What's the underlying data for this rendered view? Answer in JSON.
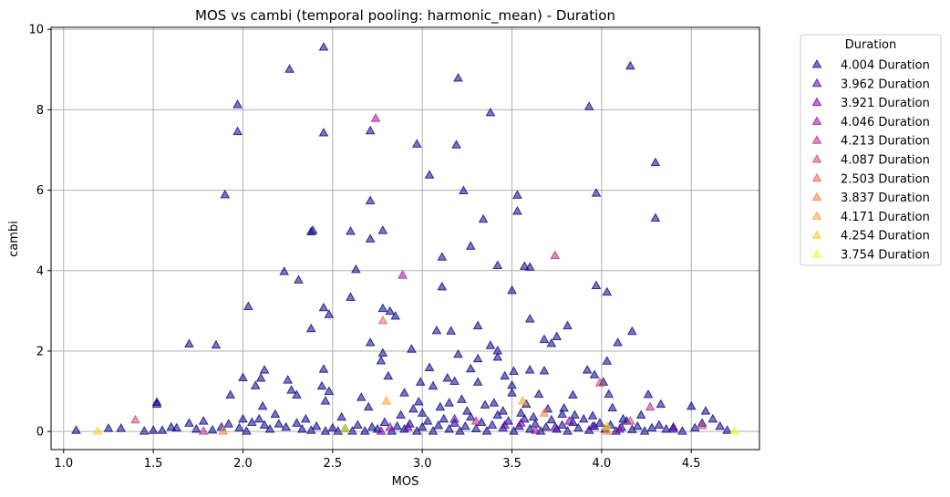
{
  "chart_data": {
    "type": "scatter",
    "title": "MOS vs cambi (temporal pooling: harmonic_mean) - Duration",
    "xlabel": "MOS",
    "ylabel": "cambi",
    "xlim": [
      0.93,
      4.88
    ],
    "ylim": [
      -0.45,
      10.05
    ],
    "xticks": [
      "1.0",
      "1.5",
      "2.0",
      "2.5",
      "3.0",
      "3.5",
      "4.0",
      "4.5"
    ],
    "yticks": [
      "0",
      "2",
      "4",
      "6",
      "8",
      "10"
    ],
    "grid": true,
    "marker": "triangle-up",
    "legend": {
      "title": "Duration",
      "position": "outside-top-right",
      "entries": [
        {
          "label": "4.004 Duration",
          "color": "#0d0887"
        },
        {
          "label": "3.962 Duration",
          "color": "#5c01a6"
        },
        {
          "label": "3.921 Duration",
          "color": "#7e03a8"
        },
        {
          "label": "4.046 Duration",
          "color": "#9c179e"
        },
        {
          "label": "4.213 Duration",
          "color": "#b52f8c"
        },
        {
          "label": "4.087 Duration",
          "color": "#cc4778"
        },
        {
          "label": "2.503 Duration",
          "color": "#e16462"
        },
        {
          "label": "3.837 Duration",
          "color": "#f2844b"
        },
        {
          "label": "4.171 Duration",
          "color": "#fca636"
        },
        {
          "label": "4.254 Duration",
          "color": "#fcce25"
        },
        {
          "label": "3.754 Duration",
          "color": "#f0f921"
        }
      ]
    },
    "series": [
      {
        "name": "4.004 Duration",
        "points": [
          [
            2.45,
            9.55
          ],
          [
            2.26,
            9.0
          ],
          [
            4.16,
            9.08
          ],
          [
            3.2,
            8.78
          ],
          [
            1.97,
            8.12
          ],
          [
            3.93,
            8.07
          ],
          [
            1.97,
            7.45
          ],
          [
            2.45,
            7.42
          ],
          [
            2.71,
            7.47
          ],
          [
            3.38,
            7.92
          ],
          [
            2.97,
            7.14
          ],
          [
            3.19,
            7.12
          ],
          [
            4.3,
            6.68
          ],
          [
            3.04,
            6.37
          ],
          [
            3.23,
            5.98
          ],
          [
            1.9,
            5.88
          ],
          [
            2.71,
            5.73
          ],
          [
            3.53,
            5.87
          ],
          [
            3.97,
            5.92
          ],
          [
            3.53,
            5.47
          ],
          [
            4.3,
            5.3
          ],
          [
            3.34,
            5.27
          ],
          [
            2.38,
            4.96
          ],
          [
            2.39,
            4.99
          ],
          [
            2.6,
            4.97
          ],
          [
            2.78,
            4.99
          ],
          [
            2.71,
            4.78
          ],
          [
            3.27,
            4.6
          ],
          [
            3.11,
            4.33
          ],
          [
            2.63,
            4.02
          ],
          [
            2.23,
            3.97
          ],
          [
            2.31,
            3.76
          ],
          [
            3.42,
            4.12
          ],
          [
            3.57,
            4.1
          ],
          [
            3.6,
            4.08
          ],
          [
            3.11,
            3.59
          ],
          [
            3.97,
            3.62
          ],
          [
            4.03,
            3.46
          ],
          [
            3.5,
            3.5
          ],
          [
            2.6,
            3.33
          ],
          [
            2.03,
            3.1
          ],
          [
            2.45,
            3.07
          ],
          [
            2.78,
            3.05
          ],
          [
            2.82,
            2.98
          ],
          [
            2.48,
            2.9
          ],
          [
            2.85,
            2.86
          ],
          [
            2.38,
            2.55
          ],
          [
            3.08,
            2.5
          ],
          [
            3.16,
            2.49
          ],
          [
            3.31,
            2.62
          ],
          [
            3.6,
            2.79
          ],
          [
            3.68,
            2.28
          ],
          [
            3.72,
            2.18
          ],
          [
            3.75,
            2.35
          ],
          [
            3.81,
            2.62
          ],
          [
            1.7,
            2.17
          ],
          [
            1.85,
            2.14
          ],
          [
            2.71,
            2.2
          ],
          [
            2.94,
            2.04
          ],
          [
            3.2,
            1.91
          ],
          [
            3.38,
            2.13
          ],
          [
            3.42,
            2.0
          ],
          [
            3.31,
            1.8
          ],
          [
            4.17,
            2.48
          ],
          [
            4.09,
            2.2
          ],
          [
            2.0,
            1.33
          ],
          [
            2.78,
            1.94
          ],
          [
            2.77,
            1.75
          ],
          [
            3.42,
            1.84
          ],
          [
            3.51,
            1.49
          ],
          [
            3.6,
            1.52
          ],
          [
            3.68,
            1.5
          ],
          [
            3.92,
            1.52
          ],
          [
            4.03,
            1.74
          ],
          [
            2.12,
            1.52
          ],
          [
            2.45,
            1.54
          ],
          [
            2.81,
            1.37
          ],
          [
            3.04,
            1.58
          ],
          [
            3.27,
            1.55
          ],
          [
            3.46,
            1.37
          ],
          [
            3.96,
            1.4
          ],
          [
            4.01,
            1.22
          ],
          [
            2.25,
            1.27
          ],
          [
            2.1,
            1.32
          ],
          [
            2.07,
            1.13
          ],
          [
            2.99,
            1.22
          ],
          [
            3.06,
            1.12
          ],
          [
            3.14,
            1.32
          ],
          [
            3.18,
            1.24
          ],
          [
            3.31,
            1.22
          ],
          [
            3.5,
            1.14
          ],
          [
            2.44,
            1.12
          ],
          [
            2.48,
            0.99
          ],
          [
            2.27,
            1.02
          ],
          [
            2.3,
            0.9
          ],
          [
            2.66,
            0.84
          ],
          [
            2.9,
            0.95
          ],
          [
            3.5,
            0.95
          ],
          [
            3.65,
            0.92
          ],
          [
            3.84,
            0.9
          ],
          [
            4.04,
            0.92
          ],
          [
            4.26,
            0.91
          ],
          [
            1.52,
            0.72
          ],
          [
            1.52,
            0.67
          ],
          [
            1.93,
            0.9
          ],
          [
            2.11,
            0.62
          ],
          [
            2.46,
            0.75
          ],
          [
            2.7,
            0.6
          ],
          [
            2.98,
            0.73
          ],
          [
            3.22,
            0.79
          ],
          [
            3.4,
            0.7
          ],
          [
            3.58,
            0.67
          ],
          [
            3.79,
            0.57
          ],
          [
            4.06,
            0.58
          ],
          [
            4.33,
            0.67
          ],
          [
            4.5,
            0.62
          ],
          [
            4.58,
            0.5
          ],
          [
            1.32,
            0.07
          ],
          [
            1.25,
            0.07
          ],
          [
            1.07,
            0.02
          ],
          [
            1.45,
            0.0
          ],
          [
            1.5,
            0.02
          ],
          [
            1.55,
            0.02
          ],
          [
            1.63,
            0.08
          ],
          [
            1.7,
            0.2
          ],
          [
            1.74,
            0.05
          ],
          [
            1.78,
            0.25
          ],
          [
            1.83,
            0.03
          ],
          [
            1.92,
            0.18
          ],
          [
            1.98,
            0.08
          ],
          [
            2.02,
            0.0
          ],
          [
            2.05,
            0.22
          ],
          [
            2.09,
            0.3
          ],
          [
            2.12,
            0.15
          ],
          [
            2.15,
            0.05
          ],
          [
            2.2,
            0.18
          ],
          [
            2.24,
            0.1
          ],
          [
            2.3,
            0.2
          ],
          [
            2.33,
            0.05
          ],
          [
            2.38,
            0.02
          ],
          [
            2.41,
            0.12
          ],
          [
            2.46,
            0.0
          ],
          [
            2.5,
            0.08
          ],
          [
            2.53,
            0.0
          ],
          [
            2.57,
            0.06
          ],
          [
            2.61,
            0.0
          ],
          [
            2.64,
            0.15
          ],
          [
            2.68,
            0.0
          ],
          [
            2.72,
            0.1
          ],
          [
            2.75,
            0.05
          ],
          [
            2.79,
            0.22
          ],
          [
            2.83,
            0.0
          ],
          [
            2.86,
            0.12
          ],
          [
            2.9,
            0.05
          ],
          [
            2.93,
            0.18
          ],
          [
            2.97,
            0.0
          ],
          [
            3.0,
            0.1
          ],
          [
            3.03,
            0.25
          ],
          [
            3.06,
            0.0
          ],
          [
            3.09,
            0.14
          ],
          [
            3.12,
            0.3
          ],
          [
            3.15,
            0.05
          ],
          [
            3.18,
            0.2
          ],
          [
            3.21,
            0.0
          ],
          [
            3.24,
            0.12
          ],
          [
            3.27,
            0.35
          ],
          [
            3.3,
            0.06
          ],
          [
            3.33,
            0.22
          ],
          [
            3.36,
            0.0
          ],
          [
            3.39,
            0.15
          ],
          [
            3.42,
            0.4
          ],
          [
            3.45,
            0.08
          ],
          [
            3.48,
            0.25
          ],
          [
            3.51,
            0.0
          ],
          [
            3.54,
            0.12
          ],
          [
            3.57,
            0.3
          ],
          [
            3.6,
            0.05
          ],
          [
            3.63,
            0.18
          ],
          [
            3.66,
            0.0
          ],
          [
            3.69,
            0.1
          ],
          [
            3.72,
            0.28
          ],
          [
            3.75,
            0.05
          ],
          [
            3.78,
            0.15
          ],
          [
            3.81,
            0.0
          ],
          [
            3.84,
            0.22
          ],
          [
            3.87,
            0.08
          ],
          [
            3.9,
            0.3
          ],
          [
            3.93,
            0.02
          ],
          [
            3.96,
            0.12
          ],
          [
            3.99,
            0.2
          ],
          [
            4.02,
            0.05
          ],
          [
            4.05,
            0.15
          ],
          [
            4.08,
            0.0
          ],
          [
            4.11,
            0.1
          ],
          [
            4.14,
            0.25
          ],
          [
            4.17,
            0.04
          ],
          [
            4.2,
            0.12
          ],
          [
            4.24,
            0.0
          ],
          [
            4.28,
            0.08
          ],
          [
            4.32,
            0.15
          ],
          [
            4.36,
            0.05
          ],
          [
            4.4,
            0.1
          ],
          [
            4.45,
            0.0
          ],
          [
            4.52,
            0.08
          ],
          [
            4.56,
            0.2
          ],
          [
            4.62,
            0.3
          ],
          [
            4.66,
            0.12
          ],
          [
            4.7,
            0.02
          ],
          [
            2.95,
            0.55
          ],
          [
            3.1,
            0.6
          ],
          [
            3.25,
            0.5
          ],
          [
            3.35,
            0.65
          ],
          [
            3.55,
            0.45
          ],
          [
            3.7,
            0.55
          ],
          [
            3.85,
            0.4
          ],
          [
            3.0,
            0.45
          ],
          [
            2.88,
            0.4
          ],
          [
            3.45,
            0.5
          ],
          [
            3.15,
            0.7
          ],
          [
            2.55,
            0.35
          ],
          [
            2.18,
            0.42
          ],
          [
            2.35,
            0.3
          ],
          [
            3.62,
            0.35
          ],
          [
            3.78,
            0.42
          ],
          [
            3.95,
            0.38
          ],
          [
            4.12,
            0.3
          ],
          [
            4.22,
            0.4
          ],
          [
            1.6,
            0.1
          ],
          [
            1.88,
            0.1
          ],
          [
            2.0,
            0.3
          ]
        ]
      },
      {
        "name": "3.962 Duration",
        "points": [
          [
            3.18,
            0.3
          ],
          [
            3.46,
            0.15
          ],
          [
            3.74,
            0.1
          ],
          [
            2.92,
            0.1
          ],
          [
            3.95,
            0.12
          ],
          [
            4.4,
            0.05
          ]
        ]
      },
      {
        "name": "3.921 Duration",
        "points": [
          [
            2.77,
            0.0
          ],
          [
            3.55,
            0.2
          ],
          [
            4.1,
            0.05
          ],
          [
            3.82,
            0.25
          ]
        ]
      },
      {
        "name": "4.046 Duration",
        "points": [
          [
            2.74,
            7.78
          ],
          [
            2.89,
            3.88
          ],
          [
            2.82,
            0.1
          ],
          [
            3.63,
            0.02
          ]
        ]
      },
      {
        "name": "4.213 Duration",
        "points": [
          [
            3.74,
            4.37
          ],
          [
            4.27,
            0.6
          ],
          [
            3.3,
            0.25
          ],
          [
            1.78,
            0.0
          ]
        ]
      },
      {
        "name": "4.087 Duration",
        "points": [
          [
            1.4,
            0.28
          ],
          [
            4.56,
            0.14
          ],
          [
            3.99,
            1.2
          ],
          [
            4.16,
            0.25
          ]
        ]
      },
      {
        "name": "2.503 Duration",
        "points": [
          [
            2.78,
            2.75
          ]
        ]
      },
      {
        "name": "3.837 Duration",
        "points": [
          [
            3.68,
            0.45
          ],
          [
            4.03,
            0.0
          ],
          [
            1.89,
            0.0
          ]
        ]
      },
      {
        "name": "4.171 Duration",
        "points": [
          [
            2.8,
            0.75
          ],
          [
            3.56,
            0.75
          ]
        ]
      },
      {
        "name": "4.254 Duration",
        "points": [
          [
            1.19,
            0.0
          ],
          [
            4.03,
            0.12
          ]
        ]
      },
      {
        "name": "3.754 Duration",
        "points": [
          [
            4.74,
            0.0
          ],
          [
            2.57,
            0.05
          ]
        ]
      }
    ]
  }
}
